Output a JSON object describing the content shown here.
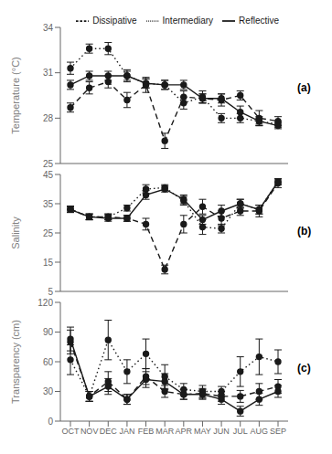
{
  "chart_data": [
    {
      "type": "line",
      "annotation": "(a)",
      "ylabel": "Temperature (°C)",
      "categories": [
        "OCT",
        "NOV",
        "DEC",
        "JAN",
        "FEB",
        "MAR",
        "APR",
        "MAY",
        "JUN",
        "JUL",
        "AUG",
        "SEP"
      ],
      "ylim": [
        25,
        34
      ],
      "yticks": [
        25,
        28,
        31,
        34
      ],
      "tick_labels": "y",
      "grid": false,
      "legend": "upper right",
      "series": [
        {
          "name": "Dissipative",
          "color": "#1a1a1a",
          "line_style": "dashed",
          "marker": "circle",
          "values": [
            28.7,
            30.0,
            30.4,
            29.2,
            30.2,
            26.5,
            29.4,
            29.3,
            29.2,
            29.5,
            28.0,
            27.8
          ],
          "errors": [
            0.3,
            0.4,
            0.4,
            0.5,
            0.5,
            0.5,
            0.4,
            0.3,
            0.4,
            0.3,
            0.5,
            0.3
          ]
        },
        {
          "name": "Intermediary",
          "color": "#1a1a1a",
          "line_style": "dotted",
          "marker": "circle",
          "values": [
            31.3,
            32.6,
            32.6,
            30.8,
            30.3,
            30.2,
            29.0,
            29.4,
            28.0,
            28.0,
            27.8,
            27.6
          ],
          "errors": [
            0.4,
            0.3,
            0.4,
            0.4,
            0.3,
            0.3,
            0.4,
            0.4,
            0.3,
            0.3,
            0.2,
            0.2
          ]
        },
        {
          "name": "Reflective",
          "color": "#1a1a1a",
          "line_style": "solid",
          "marker": "circle",
          "values": [
            30.2,
            30.8,
            30.8,
            30.8,
            30.3,
            30.2,
            30.2,
            29.3,
            29.3,
            28.4,
            27.8,
            27.5
          ],
          "errors": [
            0.3,
            0.3,
            0.3,
            0.3,
            0.3,
            0.3,
            0.3,
            0.3,
            0.3,
            0.4,
            0.3,
            0.2
          ]
        }
      ]
    },
    {
      "type": "line",
      "annotation": "(b)",
      "ylabel": "Salinity",
      "categories": [
        "OCT",
        "NOV",
        "DEC",
        "JAN",
        "FEB",
        "MAR",
        "APR",
        "MAY",
        "JUN",
        "JUL",
        "AUG",
        "SEP"
      ],
      "ylim": [
        5,
        45
      ],
      "yticks": [
        5,
        15,
        25,
        35,
        45
      ],
      "tick_labels": "y",
      "grid": false,
      "series": [
        {
          "color": "#1a1a1a",
          "line_style": "dashed",
          "marker": "circle",
          "values": [
            33.0,
            30.5,
            30.5,
            30.0,
            28.0,
            12.5,
            28.0,
            34.0,
            30.0,
            32.5,
            32.5,
            42.0
          ],
          "errors": [
            1.0,
            1.0,
            1.0,
            1.0,
            2.0,
            1.5,
            3.0,
            2.5,
            2.5,
            1.5,
            2.0,
            1.5
          ]
        },
        {
          "color": "#1a1a1a",
          "line_style": "dotted",
          "marker": "circle",
          "values": [
            33.2,
            30.5,
            30.5,
            33.5,
            40.0,
            40.5,
            36.0,
            27.0,
            26.5,
            35.0,
            33.0,
            42.5
          ],
          "errors": [
            1.0,
            1.0,
            1.0,
            1.0,
            1.5,
            1.0,
            1.5,
            2.5,
            1.5,
            1.5,
            1.5,
            1.0
          ]
        },
        {
          "color": "#1a1a1a",
          "line_style": "solid",
          "marker": "circle",
          "values": [
            33.0,
            30.5,
            30.0,
            30.0,
            38.0,
            40.0,
            36.5,
            29.5,
            32.5,
            35.0,
            33.0,
            42.5
          ],
          "errors": [
            1.0,
            1.0,
            1.0,
            1.0,
            1.5,
            1.0,
            1.5,
            1.5,
            2.0,
            1.5,
            1.5,
            1.0
          ]
        }
      ]
    },
    {
      "type": "line",
      "annotation": "(c)",
      "ylabel": "Transparency (cm)",
      "categories": [
        "OCT",
        "NOV",
        "DEC",
        "JAN",
        "FEB",
        "MAR",
        "APR",
        "MAY",
        "JUN",
        "JUL",
        "AUG",
        "SEP"
      ],
      "ylim": [
        0,
        120
      ],
      "yticks": [
        0,
        30,
        60,
        90,
        120
      ],
      "tick_labels": true,
      "grid": false,
      "series": [
        {
          "color": "#1a1a1a",
          "line_style": "dashed",
          "marker": "circle",
          "values": [
            80.0,
            25.0,
            40.0,
            22.0,
            45.0,
            30.0,
            27.0,
            28.0,
            25.0,
            25.0,
            30.0,
            35.0
          ],
          "errors": [
            12.0,
            5.0,
            10.0,
            5.0,
            8.0,
            6.0,
            5.0,
            5.0,
            5.0,
            6.0,
            8.0,
            7.0
          ]
        },
        {
          "color": "#1a1a1a",
          "line_style": "dotted",
          "marker": "circle",
          "values": [
            62.0,
            25.0,
            82.0,
            50.0,
            68.0,
            45.0,
            32.0,
            30.0,
            30.0,
            50.0,
            65.0,
            60.0
          ],
          "errors": [
            15.0,
            5.0,
            20.0,
            12.0,
            15.0,
            12.0,
            6.0,
            6.0,
            5.0,
            15.0,
            18.0,
            12.0
          ]
        },
        {
          "color": "#1a1a1a",
          "line_style": "solid",
          "marker": "circle",
          "values": [
            83.0,
            25.0,
            35.0,
            22.0,
            42.0,
            40.0,
            27.0,
            27.0,
            22.0,
            10.0,
            22.0,
            30.0
          ],
          "errors": [
            12.0,
            5.0,
            8.0,
            5.0,
            8.0,
            8.0,
            5.0,
            5.0,
            5.0,
            5.0,
            6.0,
            6.0
          ]
        }
      ]
    }
  ]
}
